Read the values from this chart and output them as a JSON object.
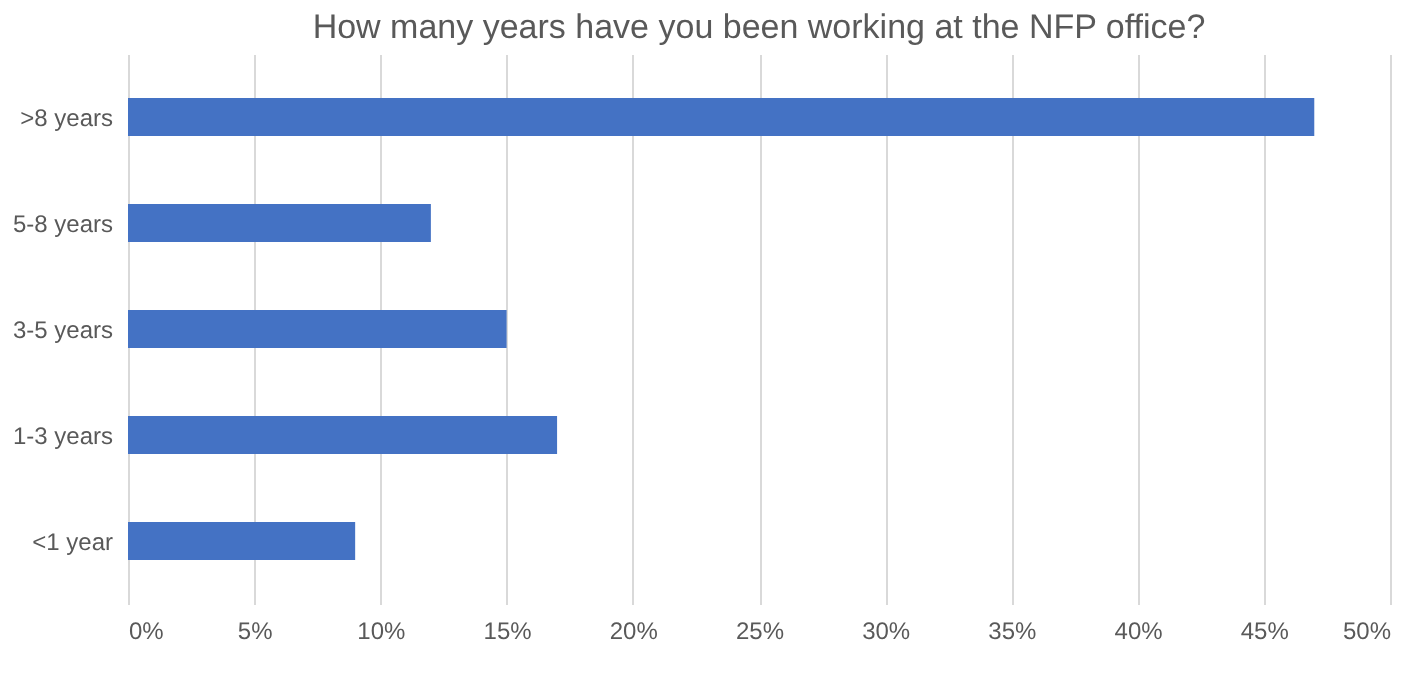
{
  "chart_data": {
    "type": "bar",
    "orientation": "horizontal",
    "title": "How many years have you been working at the NFP office?",
    "categories": [
      ">8 years",
      "5-8 years",
      "3-5 years",
      "1-3 years",
      "<1 year"
    ],
    "values": [
      47,
      12,
      15,
      17,
      9
    ],
    "color": "#4472c4",
    "xlim": [
      0,
      50
    ],
    "xticks": [
      {
        "value": 0,
        "label": "0%"
      },
      {
        "value": 5,
        "label": "5%"
      },
      {
        "value": 10,
        "label": "10%"
      },
      {
        "value": 15,
        "label": "15%"
      },
      {
        "value": 20,
        "label": "20%"
      },
      {
        "value": 25,
        "label": "25%"
      },
      {
        "value": 30,
        "label": "30%"
      },
      {
        "value": 35,
        "label": "35%"
      },
      {
        "value": 40,
        "label": "40%"
      },
      {
        "value": 45,
        "label": "45%"
      },
      {
        "value": 50,
        "label": "50%"
      }
    ],
    "grid": "x"
  }
}
